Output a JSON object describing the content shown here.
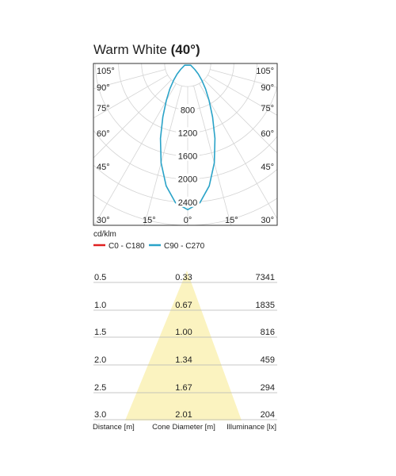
{
  "title": {
    "main": "Warm White",
    "beam": "(40°)"
  },
  "chart_data": [
    {
      "type": "polar",
      "title": "Warm White (40°)",
      "unit_label": "cd/klm",
      "radial_ticks": [
        "800",
        "1200",
        "1600",
        "2000",
        "2400"
      ],
      "radial_values": [
        800,
        1200,
        1600,
        2000,
        2400
      ],
      "radial_max": 2800,
      "angle_labels_left": [
        "105°",
        "90°",
        "75°",
        "60°",
        "45°",
        "30°",
        "15°"
      ],
      "angle_labels_right": [
        "105°",
        "90°",
        "75°",
        "60°",
        "45°",
        "30°",
        "15°"
      ],
      "angle_label_bottom": "0°",
      "grid": true,
      "legend_position": "bottom-left",
      "series": [
        {
          "name": "C0 - C180",
          "color": "#e02020",
          "points": []
        },
        {
          "name": "C90 - C270",
          "color": "#2aa3c8",
          "angles": [
            0,
            5,
            10,
            15,
            20,
            25,
            30,
            35,
            40,
            45,
            50,
            60
          ],
          "values": [
            2530,
            2420,
            2150,
            1780,
            1380,
            1020,
            740,
            540,
            380,
            260,
            160,
            60
          ]
        }
      ]
    },
    {
      "type": "table",
      "columns": [
        "Distance [m]",
        "Cone Diameter [m]",
        "Illuminance [lx]"
      ],
      "rows": [
        [
          "0.5",
          "0.33",
          "7341"
        ],
        [
          "1.0",
          "0.67",
          "1835"
        ],
        [
          "1.5",
          "1.00",
          "816"
        ],
        [
          "2.0",
          "1.34",
          "459"
        ],
        [
          "2.5",
          "1.67",
          "294"
        ],
        [
          "3.0",
          "2.01",
          "204"
        ]
      ],
      "distance": [
        0.5,
        1.0,
        1.5,
        2.0,
        2.5,
        3.0
      ],
      "cone_diameter": [
        0.33,
        0.67,
        1.0,
        1.34,
        1.67,
        2.01
      ],
      "illuminance": [
        7341,
        1835,
        816,
        459,
        294,
        204
      ],
      "cone_color": "#fbf3c0"
    }
  ]
}
